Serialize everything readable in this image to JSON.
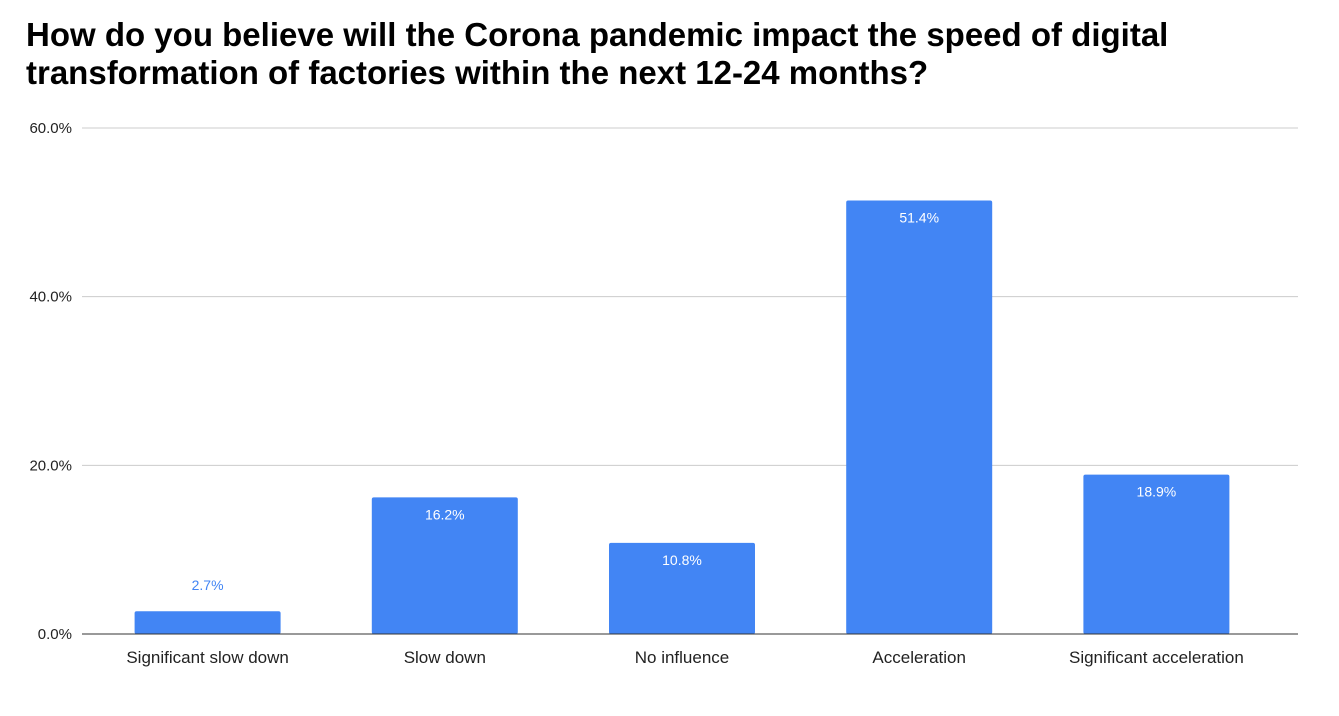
{
  "chart_data": {
    "type": "bar",
    "title": "How do you believe will the Corona pandemic impact the speed of digital transformation of factories within the next 12-24 months?",
    "categories": [
      "Significant slow down",
      "Slow down",
      "No influence",
      "Acceleration",
      "Significant acceleration"
    ],
    "values": [
      2.7,
      16.2,
      10.8,
      51.4,
      18.9
    ],
    "data_labels": [
      "2.7%",
      "16.2%",
      "10.8%",
      "51.4%",
      "18.9%"
    ],
    "ylim": [
      0,
      60
    ],
    "yticks": [
      0,
      20,
      40,
      60
    ],
    "ytick_labels": [
      "0.0%",
      "20.0%",
      "40.0%",
      "60.0%"
    ],
    "xlabel": "",
    "ylabel": "",
    "grid": true,
    "legend": "none",
    "colors": {
      "bar": "#4285f4",
      "label_inside": "#ffffff",
      "label_outside": "#4285f4",
      "grid": "#cccccc",
      "axis": "#333333",
      "text": "#222222"
    }
  }
}
